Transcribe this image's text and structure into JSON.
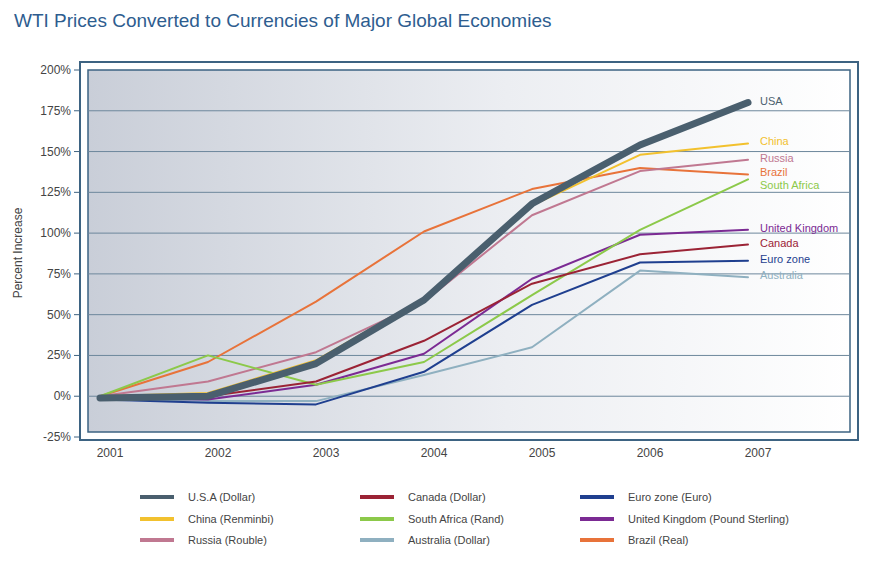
{
  "chart_data": {
    "type": "line",
    "title": "WTI Prices Converted to Currencies of Major Global Economies",
    "y_label": "Percent Increase",
    "categories": [
      "2001",
      "2002",
      "2003",
      "2004",
      "2005",
      "2006",
      "2007"
    ],
    "ylim": [
      -25,
      200
    ],
    "yticks": [
      {
        "value": -25,
        "label": "-25%"
      },
      {
        "value": 0,
        "label": "0%"
      },
      {
        "value": 25,
        "label": "25%"
      },
      {
        "value": 50,
        "label": "50%"
      },
      {
        "value": 75,
        "label": "75%"
      },
      {
        "value": 100,
        "label": "100%"
      },
      {
        "value": 125,
        "label": "125%"
      },
      {
        "value": 150,
        "label": "150%"
      },
      {
        "value": 175,
        "label": "175%"
      },
      {
        "value": 200,
        "label": "200%"
      }
    ],
    "grid": true,
    "legend": "bottom",
    "series": [
      {
        "name": "U.S.A (Dollar)",
        "label": "USA",
        "color": "#4a5f6e",
        "values": [
          -1,
          0,
          20,
          59,
          118,
          154,
          180
        ]
      },
      {
        "name": "Canada (Dollar)",
        "label": "Canada",
        "color": "#9b2335",
        "values": [
          -1,
          0,
          9,
          34,
          69,
          87,
          93
        ]
      },
      {
        "name": "Euro zone (Euro)",
        "label": "Euro zone",
        "color": "#1f3f8f",
        "values": [
          -2,
          -4,
          -5,
          15,
          56,
          82,
          83
        ]
      },
      {
        "name": "China (Renminbi)",
        "label": "China",
        "color": "#f2c12e",
        "values": [
          0,
          2,
          22,
          60,
          117,
          148,
          155
        ]
      },
      {
        "name": "South Africa (Rand)",
        "label": "South Africa",
        "color": "#8cc94a",
        "values": [
          0,
          25,
          7,
          21,
          62,
          102,
          133
        ]
      },
      {
        "name": "United Kingdom (Pound Sterling)",
        "label": "United Kingdom",
        "color": "#7b2a93",
        "values": [
          -1,
          -2,
          7,
          26,
          72,
          99,
          102
        ]
      },
      {
        "name": "Russia (Rouble)",
        "label": "Russia",
        "color": "#c07891",
        "values": [
          0,
          9,
          27,
          58,
          111,
          138,
          145
        ]
      },
      {
        "name": "Australia (Dollar)",
        "label": "Australia",
        "color": "#8fb0c0",
        "values": [
          -1,
          -3,
          -3,
          13,
          30,
          77,
          73
        ]
      },
      {
        "name": "Brazil (Real)",
        "label": "Brazil",
        "color": "#e8733a",
        "values": [
          0,
          21,
          58,
          101,
          127,
          140,
          136
        ]
      }
    ]
  }
}
